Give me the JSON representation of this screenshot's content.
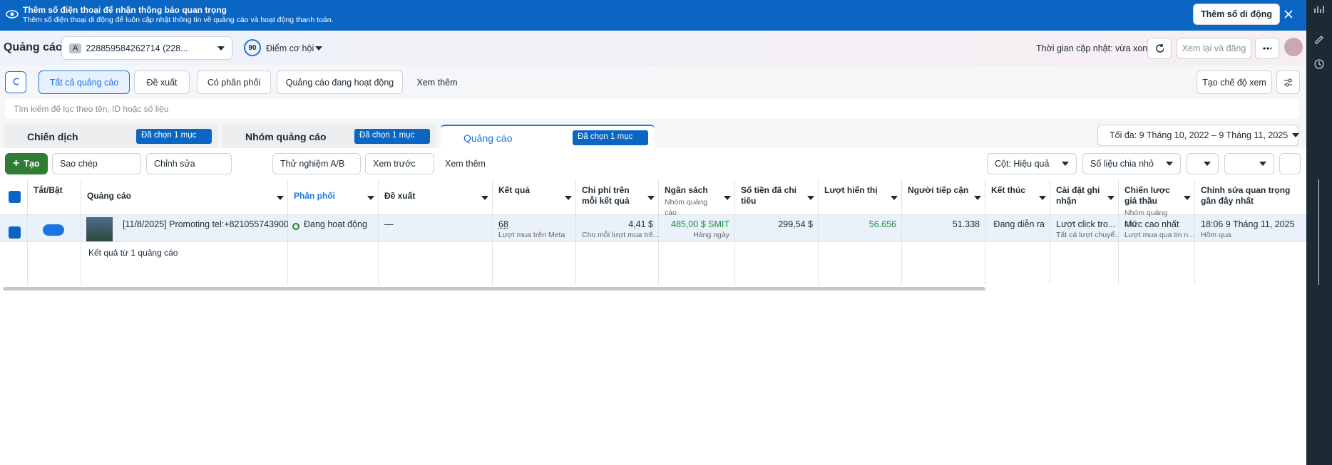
{
  "banner": {
    "title": "Thêm số điện thoại để nhận thông báo quan trọng",
    "subtitle": "Thêm số điện thoại di động để luôn cập nhật thông tin về quảng cáo và hoạt động thanh toán.",
    "button": "Thêm số di động"
  },
  "topbar": {
    "title": "Quảng cáo",
    "account_letter": "A",
    "account": "228859584262714 (228...",
    "score": "90",
    "score_label": "Điểm cơ hội",
    "update_time": "Thời gian cập nhật: vừa xong",
    "review_button": "Xem lại và đăng"
  },
  "filters": {
    "items": [
      "Tất cả quảng cáo",
      "Đề xuất",
      "Có phân phối",
      "Quảng cáo đang hoạt động",
      "Xem thêm"
    ],
    "create_view": "Tạo chế độ xem"
  },
  "search_placeholder": "Tìm kiếm để lọc theo tên, ID hoặc số liệu",
  "levels": [
    {
      "label": "Chiến dịch",
      "badge": "Đã chọn 1 mục"
    },
    {
      "label": "Nhóm quảng cáo",
      "badge": "Đã chọn 1 mục"
    },
    {
      "label": "Quảng cáo",
      "badge": "Đã chọn 1 mục"
    }
  ],
  "date_range": "Tối đa: 9 Tháng 10, 2022 – 9 Tháng 11, 2025",
  "toolbar": {
    "create": "Tạo",
    "left": [
      "Sao chép",
      "Chỉnh sửa",
      "Thử nghiệm A/B",
      "Xem trước",
      "Xem thêm"
    ],
    "columns": "Cột: Hiệu quả",
    "breakdown": "Số liệu chia nhỏ"
  },
  "table": {
    "headers": [
      {
        "label": "Tắt/Bật"
      },
      {
        "label": "Quảng cáo"
      },
      {
        "label": "Phân phối"
      },
      {
        "label": "Đề xuất"
      },
      {
        "label": "Kết quả"
      },
      {
        "label": "Chi phí trên mỗi kết quả"
      },
      {
        "label": "Ngân sách",
        "sub": "Nhóm quảng cáo"
      },
      {
        "label": "Số tiền đã chi tiêu"
      },
      {
        "label": "Lượt hiển thị"
      },
      {
        "label": "Người tiếp cận"
      },
      {
        "label": "Kết thúc"
      },
      {
        "label": "Cài đặt ghi nhận"
      },
      {
        "label": "Chiến lược giá thầu",
        "sub": "Nhóm quảng cáo"
      },
      {
        "label": "Chỉnh sửa quan trọng gần đây nhất"
      }
    ],
    "row": [
      {
        "text": "[11/8/2025] Promoting tel:+821055743900"
      },
      {
        "text": "Đang hoạt động"
      },
      {
        "text": "—"
      },
      {
        "text": "68",
        "sub": "Lượt mua trên Meta"
      },
      {
        "text": "4,41 $",
        "sub": "Cho mỗi lượt mua trê..."
      },
      {
        "text": "485,00 $ SMIT",
        "sub": "Hàng ngày"
      },
      {
        "text": "299,54 $"
      },
      {
        "text": "56.656"
      },
      {
        "text": "51.338"
      },
      {
        "text": "Đang diễn ra"
      },
      {
        "text": "Lượt click tro...",
        "sub": "Tất cả lượt chuyể..."
      },
      {
        "text": "Mức cao nhất",
        "sub": "Lượt mua qua tin n..."
      },
      {
        "text": "18:06 9 Tháng 11, 2025",
        "sub": "Hôm qua"
      }
    ],
    "summary": "Kết quả từ 1 quảng cáo"
  }
}
